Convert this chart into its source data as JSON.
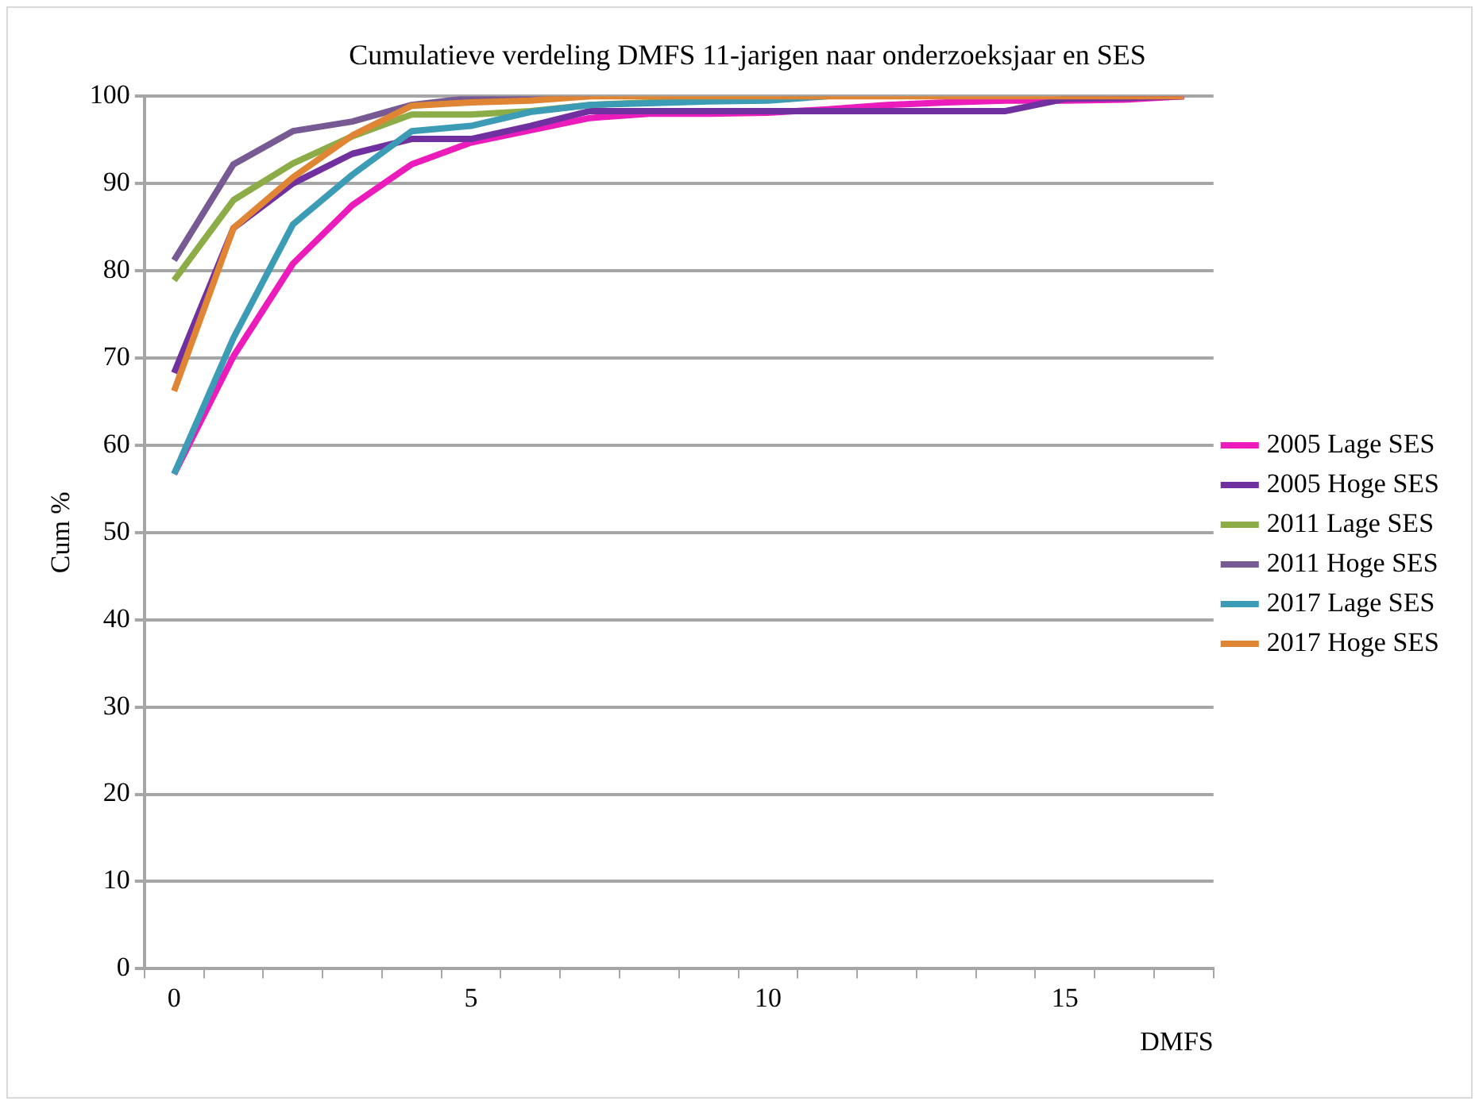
{
  "chart_data": {
    "type": "line",
    "title": "Cumulatieve verdeling DMFS 11-jarigen naar onderzoeksjaar en SES",
    "xlabel": "DMFS",
    "ylabel": "Cum %",
    "categories": [
      "0",
      null,
      null,
      null,
      null,
      "5",
      null,
      null,
      null,
      null,
      "10",
      null,
      null,
      null,
      null,
      "15",
      null,
      null
    ],
    "ylim": [
      0,
      100
    ],
    "yticks": [
      0,
      10,
      20,
      30,
      40,
      50,
      60,
      70,
      80,
      90,
      100
    ],
    "grid": "y",
    "legend": "right",
    "marker": "none",
    "line_style": "solid",
    "series": [
      {
        "name": "2005 Lage SES",
        "color": "#ec1cbc",
        "values": [
          56.7,
          70.2,
          80.8,
          87.5,
          92.2,
          94.7,
          96.1,
          97.5,
          98,
          98,
          98.1,
          98.5,
          99,
          99.3,
          99.5,
          99.5,
          99.6,
          100
        ]
      },
      {
        "name": "2005 Hoge SES",
        "color": "#7030a0",
        "values": [
          68.3,
          84.9,
          90,
          93.4,
          95.1,
          95.1,
          96.6,
          98.3,
          98.3,
          98.3,
          98.3,
          98.3,
          98.3,
          98.3,
          98.3,
          99.7,
          99.8,
          100
        ]
      },
      {
        "name": "2011 Lage SES",
        "color": "#8bac46",
        "values": [
          78.9,
          88.1,
          92.3,
          95.4,
          97.9,
          97.9,
          98.3,
          99,
          99.3,
          99.5,
          100,
          null,
          null,
          null,
          null,
          null,
          null,
          null
        ]
      },
      {
        "name": "2011 Hoge SES",
        "color": "#775a93",
        "values": [
          81.2,
          92.2,
          96,
          97.1,
          99,
          99.8,
          100,
          100,
          null,
          null,
          null,
          null,
          null,
          null,
          null,
          null,
          null,
          null
        ]
      },
      {
        "name": "2017 Lage SES",
        "color": "#3d9cb5",
        "values": [
          56.7,
          72.3,
          85.3,
          91,
          96,
          96.6,
          98.2,
          99,
          99.2,
          99.4,
          99.5,
          100,
          null,
          null,
          null,
          null,
          null,
          null
        ]
      },
      {
        "name": "2017 Hoge SES",
        "color": "#e08534",
        "values": [
          66.2,
          84.9,
          90.7,
          95.5,
          98.9,
          99.3,
          99.5,
          100,
          100,
          100,
          100,
          100,
          100,
          100,
          100,
          100,
          100,
          100
        ]
      }
    ]
  }
}
